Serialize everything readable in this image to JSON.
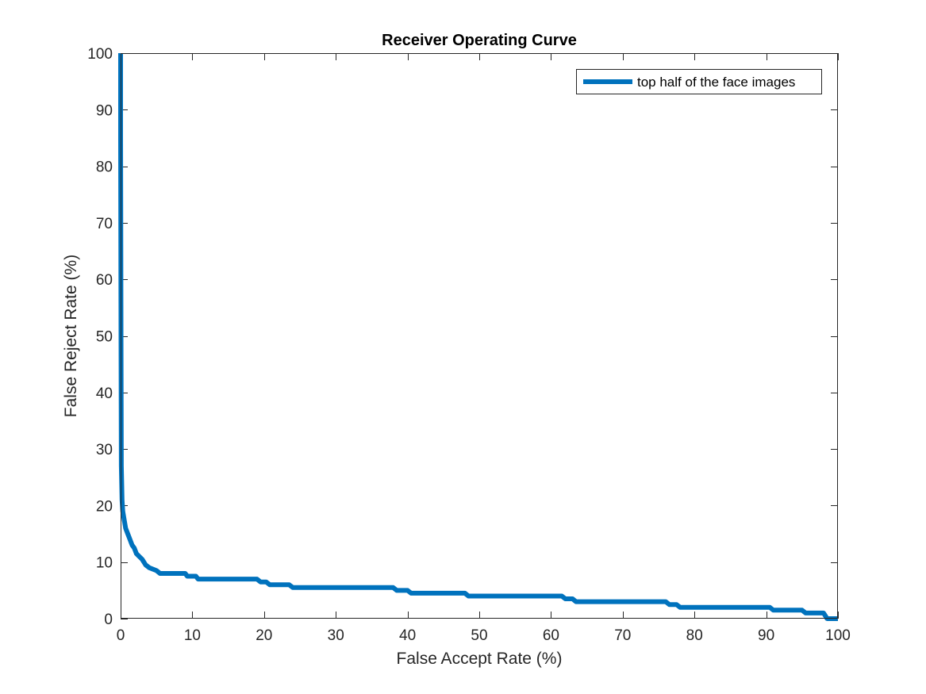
{
  "chart_data": {
    "type": "line",
    "title": "Receiver Operating Curve",
    "xlabel": "False Accept Rate (%)",
    "ylabel": "False Reject Rate (%)",
    "xlim": [
      0,
      100
    ],
    "ylim": [
      0,
      100
    ],
    "xticks": [
      "0",
      "10",
      "20",
      "30",
      "40",
      "50",
      "60",
      "70",
      "80",
      "90",
      "100"
    ],
    "yticks": [
      "0",
      "10",
      "20",
      "30",
      "40",
      "50",
      "60",
      "70",
      "80",
      "90",
      "100"
    ],
    "grid": false,
    "legend_position": "top-right",
    "series": [
      {
        "name": "top half of the face images",
        "color": "#0072BD",
        "x": [
          0,
          0,
          0.05,
          0.1,
          0.2,
          0.3,
          0.5,
          0.7,
          1.0,
          1.3,
          1.6,
          1.9,
          2.2,
          2.6,
          3.0,
          3.5,
          4.0,
          5.0,
          5.5,
          9.0,
          9.3,
          10.5,
          10.8,
          19.0,
          19.5,
          20.3,
          20.8,
          23.5,
          24.0,
          38.0,
          38.5,
          40.0,
          40.5,
          48.0,
          48.5,
          61.5,
          62.0,
          63.0,
          63.5,
          76.0,
          76.5,
          77.5,
          78.0,
          90.5,
          91.0,
          95.0,
          95.5,
          98.0,
          98.5,
          100
        ],
        "y": [
          100,
          85,
          50,
          27,
          21,
          19,
          17.5,
          16,
          15,
          14,
          13,
          12.5,
          11.5,
          11,
          10.5,
          9.5,
          9,
          8.5,
          8,
          8,
          7.5,
          7.5,
          7,
          7,
          6.5,
          6.5,
          6,
          6,
          5.5,
          5.5,
          5,
          5,
          4.5,
          4.5,
          4,
          4,
          3.5,
          3.5,
          3,
          3,
          2.5,
          2.5,
          2,
          2,
          1.5,
          1.5,
          1,
          1,
          0,
          0
        ]
      }
    ]
  }
}
